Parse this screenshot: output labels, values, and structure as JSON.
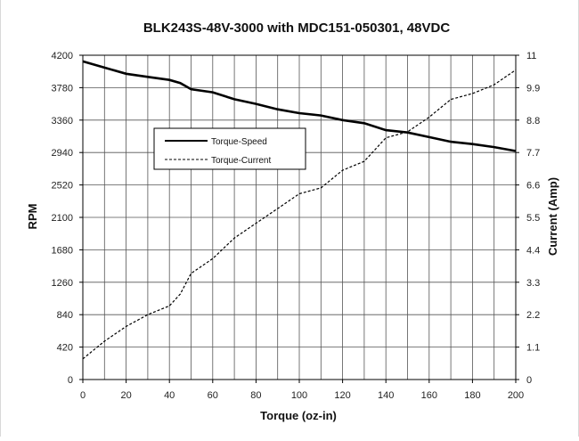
{
  "chart_data": {
    "type": "line",
    "title": "BLK243S-48V-3000 with MDC151-050301, 48VDC",
    "xlabel": "Torque (oz-in)",
    "ylabel": "RPM",
    "y2label": "Current (Amp)",
    "xlim": [
      0,
      200
    ],
    "ylim": [
      0,
      4200
    ],
    "y2lim": [
      0,
      11
    ],
    "x_ticks": [
      "0",
      "20",
      "40",
      "60",
      "80",
      "100",
      "120",
      "140",
      "160",
      "180",
      "200"
    ],
    "y_ticks": [
      "0",
      "420",
      "840",
      "1260",
      "1680",
      "2100",
      "2520",
      "2940",
      "3360",
      "3780",
      "4200"
    ],
    "y2_ticks": [
      "0",
      "1.1",
      "2.2",
      "3.3",
      "4.4",
      "5.5",
      "6.6",
      "7.7",
      "8.8",
      "9.9",
      "11"
    ],
    "grid": true,
    "legend_position": "upper-left",
    "series": [
      {
        "name": "Torque-Speed",
        "axis": "left",
        "style": "solid",
        "color": "#000000",
        "x": [
          0,
          10,
          20,
          30,
          40,
          45,
          50,
          60,
          70,
          80,
          90,
          100,
          110,
          120,
          130,
          140,
          150,
          160,
          170,
          180,
          190,
          200
        ],
        "y": [
          4120,
          4040,
          3960,
          3920,
          3880,
          3840,
          3760,
          3720,
          3630,
          3570,
          3500,
          3450,
          3420,
          3360,
          3320,
          3230,
          3200,
          3140,
          3080,
          3050,
          3010,
          2960
        ]
      },
      {
        "name": "Torque-Current",
        "axis": "right",
        "style": "dashed",
        "color": "#000000",
        "x": [
          0,
          10,
          20,
          30,
          40,
          45,
          50,
          60,
          70,
          80,
          90,
          100,
          110,
          120,
          130,
          140,
          150,
          160,
          170,
          180,
          190,
          200
        ],
        "y": [
          0.7,
          1.3,
          1.8,
          2.2,
          2.5,
          2.9,
          3.6,
          4.1,
          4.8,
          5.3,
          5.8,
          6.3,
          6.5,
          7.1,
          7.4,
          8.2,
          8.4,
          8.9,
          9.5,
          9.7,
          10.0,
          10.5
        ]
      }
    ]
  }
}
